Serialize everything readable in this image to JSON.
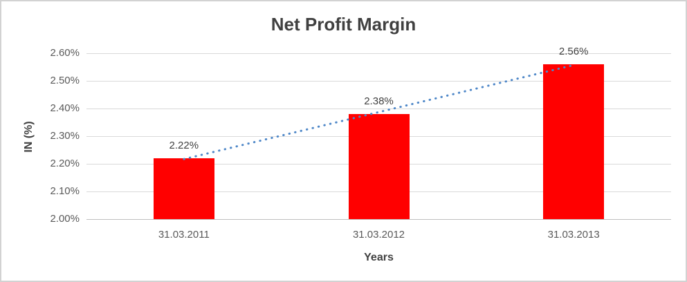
{
  "chart_data": {
    "type": "bar",
    "title": "Net Profit Margin",
    "xlabel": "Years",
    "ylabel": "IN (%)",
    "categories": [
      "31.03.2011",
      "31.03.2012",
      "31.03.2013"
    ],
    "values": [
      2.22,
      2.38,
      2.56
    ],
    "data_labels": [
      "2.22%",
      "2.38%",
      "2.56%"
    ],
    "ylim": [
      2.0,
      2.6
    ],
    "y_ticks": [
      {
        "value": 2.6,
        "label": "2.60%"
      },
      {
        "value": 2.5,
        "label": "2.50%"
      },
      {
        "value": 2.4,
        "label": "2.40%"
      },
      {
        "value": 2.3,
        "label": "2.30%"
      },
      {
        "value": 2.2,
        "label": "2.20%"
      },
      {
        "value": 2.1,
        "label": "2.10%"
      },
      {
        "value": 2.0,
        "label": "2.00%"
      }
    ],
    "grid": true,
    "legend": false,
    "bar_color": "#ff0000",
    "trendline": {
      "style": "dotted",
      "color": "#4e87c8",
      "start_value": 2.217,
      "end_value": 2.557
    },
    "colors": {
      "gridline": "#d9d9d9",
      "axis_line": "#bfbfbf",
      "title_text": "#404040",
      "tick_text": "#595959",
      "border": "#d2d2d2"
    }
  }
}
